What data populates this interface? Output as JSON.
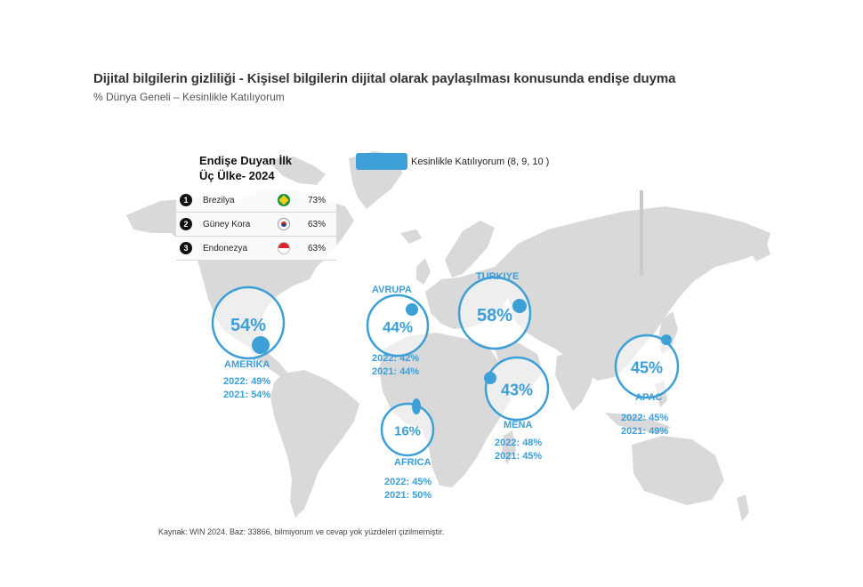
{
  "title": "Dijital bilgilerin gizliliği - Kişisel bilgilerin dijital olarak paylaşılması konusunda endişe duyma",
  "subtitle": "% Dünya Geneli – Kesinlikle Katılıyorum",
  "legend": {
    "label": "Kesinlikle Katılıyorum (8, 9, 10 )",
    "color": "#3fa0d8"
  },
  "top_countries": {
    "heading": "Endişe Duyan İlk Üç Ülke- 2024",
    "items": [
      {
        "rank": "1",
        "country": "Brezilya",
        "value": "73%",
        "flag": "brazil-flag-icon"
      },
      {
        "rank": "2",
        "country": "Güney Kora",
        "value": "63%",
        "flag": "south-korea-flag-icon"
      },
      {
        "rank": "3",
        "country": "Endonezya",
        "value": "63%",
        "flag": "indonesia-flag-icon"
      }
    ]
  },
  "chart_data": {
    "type": "map",
    "series": [
      {
        "name": "Kesinlikle Katılıyorum (8, 9, 10 )"
      }
    ],
    "regions": [
      {
        "name": "AMERİKA",
        "value_label": "54%",
        "value": 54,
        "history": [
          "2022: 49%",
          "2021: 54%"
        ]
      },
      {
        "name": "AVRUPA",
        "value_label": "44%",
        "value": 44,
        "history": [
          "2022: 42%",
          "2021: 44%"
        ]
      },
      {
        "name": "TURKIYE",
        "value_label": "58%",
        "value": 58,
        "history": []
      },
      {
        "name": "AFRICA",
        "value_label": "16%",
        "value": 16,
        "history": [
          "2022: 45%",
          "2021: 50%"
        ]
      },
      {
        "name": "MENA",
        "value_label": "43%",
        "value": 43,
        "history": [
          "2022: 48%",
          "2021: 45%"
        ]
      },
      {
        "name": "APAC",
        "value_label": "45%",
        "value": 45,
        "history": [
          "2022: 45%",
          "2021: 49%"
        ]
      }
    ]
  },
  "source": "Kaynak: WIN 2024. Baz: 33866, bilmiyorum ve cevap yok yüzdeleri çizilmemiştir.",
  "colors": {
    "accent": "#3c9fd6",
    "land": "#d9d9d9"
  }
}
